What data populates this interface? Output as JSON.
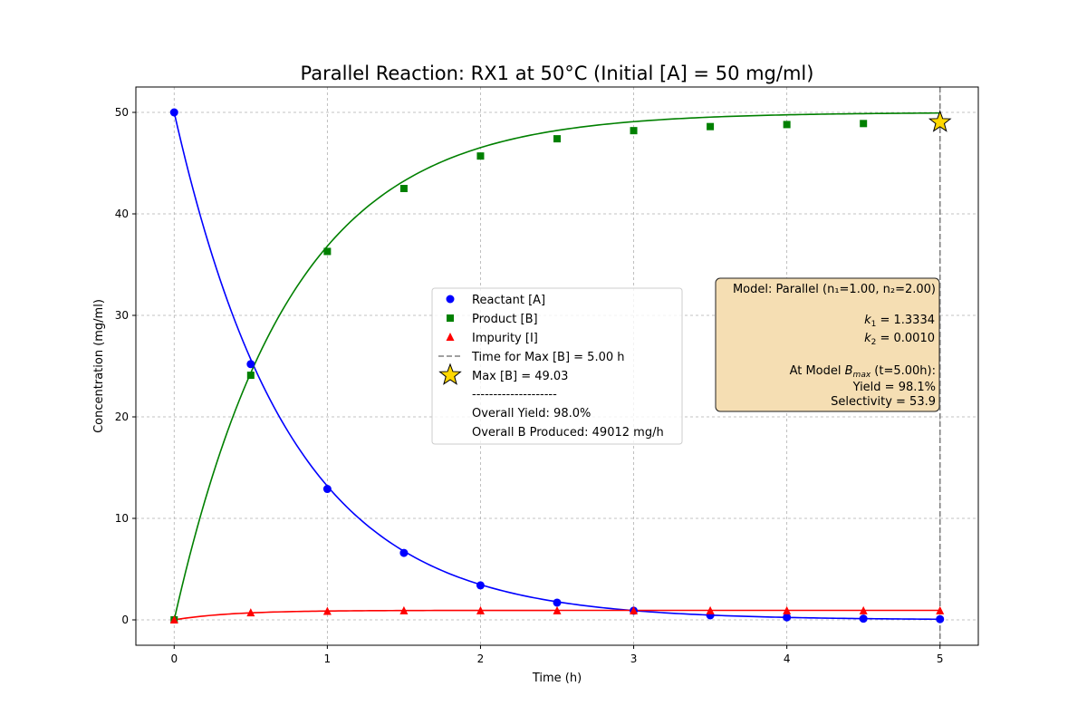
{
  "chart_data": {
    "type": "line",
    "title": "Parallel Reaction: RX1 at 50°C (Initial [A] = 50 mg/ml)",
    "xlabel": "Time (h)",
    "ylabel": "Concentration (mg/ml)",
    "xlim": [
      -0.25,
      5.25
    ],
    "ylim": [
      -2.5,
      52.5
    ],
    "xticks": [
      0,
      1,
      2,
      3,
      4,
      5
    ],
    "yticks": [
      0,
      10,
      20,
      30,
      40,
      50
    ],
    "grid": true,
    "legend_position": "center",
    "model": {
      "A0": 50,
      "k1": 1.3334,
      "k2": 0.001,
      "n2": 2
    },
    "series": [
      {
        "name": "Reactant [A]",
        "color": "#0000ff",
        "marker": "circle",
        "x": [
          0,
          0.5,
          1,
          1.5,
          2,
          2.5,
          3,
          3.5,
          4,
          4.5,
          5
        ],
        "y": [
          50,
          25.2,
          12.9,
          6.6,
          3.4,
          1.7,
          0.9,
          0.45,
          0.25,
          0.12,
          0.07
        ]
      },
      {
        "name": "Product [B]",
        "color": "#008000",
        "marker": "square",
        "x": [
          0,
          0.5,
          1,
          1.5,
          2,
          2.5,
          3,
          3.5,
          4,
          4.5,
          5
        ],
        "y": [
          0,
          24.1,
          36.3,
          42.5,
          45.7,
          47.4,
          48.2,
          48.6,
          48.8,
          48.9,
          49.0
        ]
      },
      {
        "name": "Impurity [I]",
        "color": "#ff0000",
        "marker": "triangle",
        "x": [
          0,
          0.5,
          1,
          1.5,
          2,
          2.5,
          3,
          3.5,
          4,
          4.5,
          5
        ],
        "y": [
          0,
          0.7,
          0.85,
          0.9,
          0.9,
          0.9,
          0.9,
          0.9,
          0.9,
          0.9,
          0.9
        ]
      }
    ],
    "vline": {
      "x": 5.0,
      "color": "#808080",
      "label": "Time for Max [B] = 5.00 h"
    },
    "max_point": {
      "x": 5.0,
      "y": 49.03,
      "label": "Max [B] = 49.03",
      "color": "#ffd700"
    },
    "legend_extra": [
      "--------------------",
      "Overall Yield: 98.0%",
      "Overall B Produced: 49012 mg/h"
    ],
    "annotation": {
      "bg": "#f5deb3",
      "model_line": "Model: Parallel (n₁=1.00, n₂=2.00)",
      "k1_label": "k",
      "k1_sub": "1",
      "k1_value": " = 1.3334",
      "k2_label": "k",
      "k2_sub": "2",
      "k2_value": " = 0.0010",
      "bmax_prefix": "At Model ",
      "bmax_label": "B",
      "bmax_sub": "max",
      "bmax_suffix": " (t=5.00h):",
      "yield_line": "Yield = 98.1%",
      "selectivity_line": "Selectivity = 53.9"
    }
  }
}
